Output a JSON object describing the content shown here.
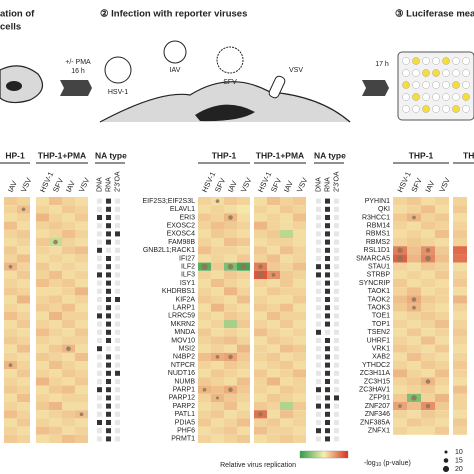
{
  "schematic": {
    "step1_line1": "ation of",
    "step1_line2": "cells",
    "step2": "② Infection with reporter viruses",
    "step3": "③ Luciferase measurement",
    "pma": "+/- PMA",
    "time1": "16 h",
    "time2": "17 h",
    "viruses": [
      "HSV-1",
      "IAV",
      "SFV",
      "VSV"
    ]
  },
  "panels": [
    {
      "header_groups": [
        "HP-1",
        "THP-1+PMA"
      ],
      "columns": [
        "IAV",
        "VSV",
        "HSV-1",
        "SFV",
        "IAV",
        "VSV"
      ],
      "na_header": "NA type",
      "na_columns": [
        "DNA",
        "RNA",
        "2'3'OA"
      ],
      "values": [
        [
          0.4,
          0.3,
          0.2,
          0.5,
          0.3,
          0.2
        ],
        [
          0.3,
          0.5,
          0.3,
          0.2,
          0.4,
          0.3
        ],
        [
          0.2,
          0.3,
          0.6,
          0.3,
          0.2,
          0.4
        ],
        [
          0.5,
          0.2,
          0.3,
          0.4,
          0.3,
          0.2
        ],
        [
          0.3,
          0.4,
          0.2,
          0.3,
          0.5,
          0.3
        ],
        [
          0.2,
          0.3,
          0.4,
          -0.5,
          0.3,
          0.2
        ],
        [
          0.4,
          0.2,
          0.3,
          0.2,
          0.4,
          0.5
        ],
        [
          0.3,
          0.5,
          0.2,
          0.3,
          0.2,
          0.3
        ],
        [
          0.6,
          0.3,
          0.4,
          0.2,
          0.3,
          0.2
        ],
        [
          0.2,
          0.4,
          0.3,
          0.5,
          0.2,
          0.3
        ],
        [
          0.3,
          0.2,
          0.5,
          0.3,
          0.4,
          0.2
        ],
        [
          0.4,
          0.3,
          0.2,
          0.2,
          0.3,
          0.6
        ],
        [
          0.2,
          0.6,
          0.3,
          0.4,
          0.2,
          0.3
        ],
        [
          0.3,
          0.2,
          0.4,
          0.3,
          0.5,
          0.2
        ],
        [
          0.5,
          0.3,
          0.2,
          0.6,
          0.3,
          0.3
        ],
        [
          0.2,
          0.4,
          0.3,
          0.2,
          0.4,
          0.2
        ],
        [
          0.3,
          0.2,
          0.5,
          0.3,
          0.2,
          0.4
        ],
        [
          0.4,
          0.3,
          0.3,
          0.2,
          0.3,
          0.3
        ],
        [
          0.2,
          0.5,
          0.2,
          0.4,
          0.6,
          0.2
        ],
        [
          0.3,
          0.2,
          0.4,
          0.3,
          0.2,
          0.5
        ],
        [
          0.6,
          0.3,
          0.2,
          0.5,
          0.3,
          0.2
        ],
        [
          0.2,
          0.4,
          0.3,
          0.2,
          0.4,
          0.3
        ],
        [
          0.3,
          0.2,
          0.6,
          0.3,
          0.2,
          0.4
        ],
        [
          0.4,
          0.3,
          0.2,
          0.4,
          0.5,
          0.2
        ],
        [
          0.2,
          0.5,
          0.3,
          0.2,
          0.3,
          0.3
        ],
        [
          0.3,
          0.2,
          0.4,
          0.6,
          0.2,
          0.2
        ],
        [
          0.5,
          0.3,
          0.2,
          0.3,
          0.4,
          0.5
        ],
        [
          0.2,
          0.4,
          0.3,
          0.2,
          0.3,
          0.2
        ],
        [
          0.3,
          0.2,
          0.5,
          0.4,
          0.2,
          0.3
        ],
        [
          0.4,
          0.3,
          0.2,
          0.3,
          0.5,
          0.4
        ]
      ],
      "significance": [
        [
          1,
          1,
          12
        ],
        [
          5,
          3,
          15
        ],
        [
          8,
          0,
          12
        ],
        [
          18,
          4,
          15
        ],
        [
          20,
          0,
          12
        ],
        [
          26,
          5,
          12
        ]
      ],
      "na": [
        [
          0,
          1,
          0
        ],
        [
          0,
          1,
          0
        ],
        [
          1,
          1,
          0
        ],
        [
          0,
          1,
          0
        ],
        [
          0,
          1,
          1
        ],
        [
          0,
          1,
          0
        ],
        [
          1,
          0,
          0
        ],
        [
          0,
          1,
          0
        ],
        [
          0,
          1,
          0
        ],
        [
          1,
          1,
          0
        ],
        [
          0,
          1,
          0
        ],
        [
          0,
          1,
          0
        ],
        [
          0,
          1,
          1
        ],
        [
          0,
          1,
          0
        ],
        [
          1,
          1,
          0
        ],
        [
          0,
          1,
          0
        ],
        [
          0,
          1,
          0
        ],
        [
          0,
          1,
          0
        ],
        [
          1,
          0,
          0
        ],
        [
          0,
          1,
          0
        ],
        [
          0,
          1,
          0
        ],
        [
          0,
          1,
          1
        ],
        [
          0,
          1,
          0
        ],
        [
          1,
          1,
          0
        ],
        [
          0,
          1,
          0
        ],
        [
          0,
          1,
          0
        ],
        [
          0,
          1,
          0
        ],
        [
          1,
          1,
          0
        ],
        [
          0,
          1,
          0
        ],
        [
          0,
          1,
          0
        ]
      ]
    },
    {
      "header_groups": [
        "THP-1",
        "THP-1+PMA"
      ],
      "columns": [
        "HSV-1",
        "SFV",
        "IAV",
        "VSV",
        "HSV-1",
        "SFV",
        "IAV",
        "VSV"
      ],
      "na_header": "NA type",
      "na_columns": [
        "DNA",
        "RNA",
        "2'3'OA"
      ],
      "genes": [
        "EIF2S3;EIF2S3L",
        "ELAVL1",
        "ERI3",
        "EXOSC2",
        "EXOSC4",
        "FAM98B",
        "GNB2L1;RACK1",
        "IFI27",
        "ILF2",
        "ILF3",
        "ISY1",
        "KHDRBS1",
        "KIF2A",
        "LARP1",
        "LRRC59",
        "MKRN2",
        "MNDA",
        "MOV10",
        "MSI2",
        "N4BP2",
        "NTPCR",
        "NUDT16",
        "NUMB",
        "PARP1",
        "PARP12",
        "PARP2",
        "PATL1",
        "PDIA5",
        "PHF6",
        "PRMT1"
      ],
      "values": [
        [
          0.3,
          0.2,
          0.4,
          0.3,
          0.2,
          0.5,
          0.3,
          0.4
        ],
        [
          0.2,
          0.3,
          0.2,
          0.1,
          0.3,
          0.2,
          0.4,
          0.3
        ],
        [
          0.4,
          0.3,
          0.6,
          0.2,
          0.2,
          0.3,
          0.2,
          0.5
        ],
        [
          0.3,
          0.5,
          0.4,
          0.3,
          0.6,
          0.3,
          0.2,
          0.3
        ],
        [
          0.2,
          0.4,
          0.3,
          0.2,
          0.3,
          0.4,
          -0.6,
          0.2
        ],
        [
          0.3,
          0.2,
          0.5,
          0.4,
          0.2,
          0.3,
          0.3,
          0.2
        ],
        [
          0.5,
          0.3,
          0.3,
          0.2,
          0.4,
          0.2,
          0.5,
          0.3
        ],
        [
          0.2,
          0.3,
          0.2,
          0.4,
          0.3,
          0.5,
          0.2,
          0.3
        ],
        [
          -1.6,
          0.4,
          -1.2,
          -1.8,
          1.2,
          0.4,
          0.3,
          0.5
        ],
        [
          0.3,
          0.2,
          0.4,
          0.3,
          1.6,
          1.0,
          0.4,
          0.3
        ],
        [
          0.2,
          0.5,
          0.3,
          0.2,
          0.3,
          0.2,
          0.4,
          0.2
        ],
        [
          0.3,
          0.2,
          0.6,
          0.3,
          0.2,
          0.4,
          0.3,
          0.3
        ],
        [
          0.4,
          0.3,
          0.2,
          0.5,
          0.3,
          0.2,
          0.2,
          0.4
        ],
        [
          0.2,
          0.6,
          0.3,
          0.2,
          0.4,
          0.3,
          0.5,
          0.2
        ],
        [
          0.3,
          0.2,
          0.4,
          0.3,
          0.2,
          0.5,
          0.3,
          0.3
        ],
        [
          0.2,
          0.3,
          -0.8,
          0.4,
          0.3,
          0.2,
          0.4,
          0.2
        ],
        [
          0.4,
          0.2,
          0.3,
          0.2,
          0.5,
          0.3,
          0.2,
          0.3
        ],
        [
          0.3,
          0.4,
          0.5,
          0.3,
          0.2,
          0.4,
          0.3,
          0.2
        ],
        [
          0.2,
          0.3,
          0.2,
          0.6,
          0.3,
          0.2,
          0.5,
          0.4
        ],
        [
          0.5,
          0.7,
          0.8,
          0.4,
          0.3,
          0.4,
          0.2,
          0.3
        ],
        [
          0.3,
          0.2,
          0.4,
          0.3,
          0.2,
          0.3,
          0.4,
          0.2
        ],
        [
          0.2,
          0.4,
          0.3,
          0.2,
          0.4,
          0.2,
          0.3,
          0.5
        ],
        [
          0.4,
          0.3,
          0.2,
          0.5,
          0.3,
          0.6,
          0.2,
          0.3
        ],
        [
          0.6,
          0.5,
          0.7,
          0.4,
          0.3,
          0.2,
          0.4,
          0.3
        ],
        [
          0.3,
          0.6,
          0.4,
          0.3,
          0.2,
          0.4,
          0.3,
          0.2
        ],
        [
          0.2,
          0.3,
          0.5,
          0.2,
          0.4,
          0.3,
          -0.7,
          0.4
        ],
        [
          0.3,
          0.4,
          0.2,
          0.3,
          1.3,
          0.2,
          0.5,
          0.3
        ],
        [
          0.4,
          0.2,
          0.3,
          0.5,
          0.3,
          0.4,
          0.2,
          0.3
        ],
        [
          0.2,
          0.3,
          0.4,
          0.2,
          0.5,
          0.3,
          0.3,
          0.2
        ],
        [
          0.3,
          0.2,
          0.3,
          0.4,
          0.2,
          0.3,
          0.4,
          0.3
        ]
      ],
      "significance": [
        [
          0,
          1,
          12
        ],
        [
          2,
          2,
          15
        ],
        [
          8,
          0,
          20
        ],
        [
          8,
          2,
          18
        ],
        [
          8,
          3,
          20
        ],
        [
          8,
          4,
          15
        ],
        [
          9,
          4,
          18
        ],
        [
          9,
          5,
          12
        ],
        [
          19,
          1,
          12
        ],
        [
          19,
          2,
          15
        ],
        [
          23,
          0,
          12
        ],
        [
          23,
          2,
          15
        ],
        [
          24,
          1,
          10
        ],
        [
          26,
          4,
          15
        ]
      ],
      "na": [
        [
          0,
          1,
          0
        ],
        [
          0,
          1,
          0
        ],
        [
          0,
          1,
          0
        ],
        [
          0,
          1,
          0
        ],
        [
          0,
          1,
          0
        ],
        [
          0,
          1,
          0
        ],
        [
          0,
          1,
          0
        ],
        [
          0,
          1,
          0
        ],
        [
          1,
          1,
          0
        ],
        [
          1,
          1,
          0
        ],
        [
          0,
          1,
          0
        ],
        [
          0,
          1,
          0
        ],
        [
          0,
          1,
          0
        ],
        [
          0,
          1,
          0
        ],
        [
          0,
          1,
          0
        ],
        [
          0,
          1,
          0
        ],
        [
          1,
          0,
          0
        ],
        [
          0,
          1,
          0
        ],
        [
          0,
          1,
          0
        ],
        [
          0,
          1,
          0
        ],
        [
          0,
          1,
          0
        ],
        [
          0,
          1,
          0
        ],
        [
          0,
          1,
          0
        ],
        [
          1,
          1,
          0
        ],
        [
          0,
          1,
          1
        ],
        [
          1,
          1,
          0
        ],
        [
          0,
          1,
          0
        ],
        [
          0,
          1,
          0
        ],
        [
          1,
          1,
          0
        ],
        [
          0,
          1,
          0
        ]
      ]
    },
    {
      "header_groups": [
        "THP-1",
        "THP"
      ],
      "columns": [
        "HSV-1",
        "SFV",
        "IAV",
        "VSV",
        null
      ],
      "genes": [
        "PYHIN1",
        "QKI",
        "R3HCC1",
        "RBM14",
        "RBMS1",
        "RBMS2",
        "RSL1D1",
        "SMARCA5",
        "STAU1",
        "STRBP",
        "SYNCRIP",
        "TAOK1",
        "TAOK2",
        "TAOK3",
        "TOE1",
        "TOP1",
        "TSEN2",
        "UHRF1",
        "VRK1",
        "XAB2",
        "YTHDC2",
        "ZC3H11A",
        "ZC3H15",
        "ZC3HAV1",
        "ZFP91",
        "ZNF207",
        "ZNF346",
        "ZNF385A",
        "ZNFX1"
      ],
      "values": [
        [
          0.3,
          0.4,
          0.2,
          0.3,
          0.3
        ],
        [
          0.2,
          0.3,
          0.5,
          0.2,
          0.4
        ],
        [
          0.4,
          0.6,
          0.3,
          0.4,
          0.2
        ],
        [
          0.3,
          0.2,
          0.4,
          0.3,
          0.3
        ],
        [
          0.2,
          0.3,
          0.2,
          0.5,
          0.4
        ],
        [
          0.3,
          0.4,
          0.3,
          0.2,
          0.3
        ],
        [
          1.2,
          0.5,
          1.0,
          0.4,
          1.4
        ],
        [
          1.5,
          0.6,
          1.1,
          0.5,
          1.3
        ],
        [
          0.3,
          0.2,
          0.4,
          0.3,
          0.2
        ],
        [
          0.2,
          0.3,
          0.2,
          0.4,
          0.3
        ],
        [
          0.4,
          0.2,
          0.3,
          0.2,
          0.4
        ],
        [
          0.3,
          0.5,
          0.2,
          0.3,
          0.2
        ],
        [
          0.5,
          0.7,
          0.4,
          0.3,
          0.6
        ],
        [
          0.4,
          0.6,
          0.3,
          0.2,
          0.3
        ],
        [
          0.2,
          0.3,
          0.4,
          0.3,
          0.2
        ],
        [
          0.3,
          0.2,
          0.3,
          0.5,
          0.3
        ],
        [
          0.2,
          0.4,
          0.2,
          0.3,
          0.4
        ],
        [
          0.3,
          0.2,
          0.5,
          0.2,
          0.3
        ],
        [
          0.4,
          0.3,
          0.2,
          0.4,
          0.2
        ],
        [
          0.2,
          0.5,
          0.3,
          0.2,
          0.3
        ],
        [
          0.3,
          0.2,
          0.4,
          0.3,
          0.4
        ],
        [
          0.6,
          0.3,
          0.2,
          0.5,
          0.3
        ],
        [
          0.3,
          0.4,
          0.6,
          0.3,
          0.2
        ],
        [
          0.2,
          0.3,
          0.4,
          0.2,
          0.5
        ],
        [
          0.4,
          -1.2,
          0.3,
          0.6,
          0.3
        ],
        [
          0.8,
          0.5,
          1.0,
          0.4,
          0.3
        ],
        [
          0.3,
          0.2,
          0.4,
          0.3,
          0.2
        ],
        [
          0.2,
          0.4,
          0.3,
          0.2,
          0.4
        ],
        [
          0.3,
          0.2,
          0.2,
          0.4,
          0.3
        ]
      ],
      "significance": [
        [
          2,
          1,
          12
        ],
        [
          6,
          0,
          18
        ],
        [
          6,
          2,
          15
        ],
        [
          7,
          0,
          20
        ],
        [
          7,
          2,
          18
        ],
        [
          12,
          1,
          15
        ],
        [
          13,
          1,
          12
        ],
        [
          22,
          2,
          15
        ],
        [
          24,
          1,
          18
        ],
        [
          25,
          2,
          15
        ],
        [
          25,
          0,
          12
        ]
      ]
    }
  ],
  "legend": {
    "color_title": "Relative virus replication",
    "p_title": "-log",
    "p_sub": "10",
    "p_rest": " (p-value)",
    "p_sizes": [
      10,
      15,
      20
    ]
  }
}
